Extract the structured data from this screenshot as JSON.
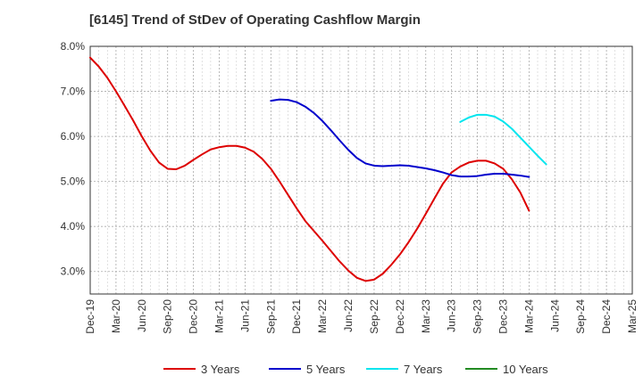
{
  "chart_data": {
    "type": "line",
    "title": "[6145]  Trend of StDev of Operating Cashflow Margin",
    "xlabel": "",
    "ylabel": "",
    "ylim": [
      2.5,
      8.0
    ],
    "y_ticks": [
      3.0,
      4.0,
      5.0,
      6.0,
      7.0,
      8.0
    ],
    "y_tick_labels": [
      "3.0%",
      "4.0%",
      "5.0%",
      "6.0%",
      "7.0%",
      "8.0%"
    ],
    "x_tick_labels": [
      "Dec-19",
      "Mar-20",
      "Jun-20",
      "Sep-20",
      "Dec-20",
      "Mar-21",
      "Jun-21",
      "Sep-21",
      "Dec-21",
      "Mar-22",
      "Jun-22",
      "Sep-22",
      "Dec-22",
      "Mar-23",
      "Jun-23",
      "Sep-23",
      "Dec-23",
      "Mar-24",
      "Jun-24",
      "Sep-24",
      "Dec-24",
      "Mar-25"
    ],
    "grid": true,
    "legend_position": "bottom",
    "series": [
      {
        "name": "3 Years",
        "color": "#dd0000",
        "points": [
          [
            "2019-12",
            7.75
          ],
          [
            "2020-01",
            7.55
          ],
          [
            "2020-02",
            7.3
          ],
          [
            "2020-03",
            7.0
          ],
          [
            "2020-04",
            6.68
          ],
          [
            "2020-05",
            6.35
          ],
          [
            "2020-06",
            6.0
          ],
          [
            "2020-07",
            5.68
          ],
          [
            "2020-08",
            5.42
          ],
          [
            "2020-09",
            5.28
          ],
          [
            "2020-10",
            5.27
          ],
          [
            "2020-11",
            5.35
          ],
          [
            "2020-12",
            5.48
          ],
          [
            "2020-13",
            5.6
          ],
          [
            "2021-02",
            5.71
          ],
          [
            "2021-03",
            5.76
          ],
          [
            "2021-04",
            5.79
          ],
          [
            "2021-05",
            5.79
          ],
          [
            "2021-06",
            5.75
          ],
          [
            "2021-07",
            5.66
          ],
          [
            "2021-08",
            5.5
          ],
          [
            "2021-09",
            5.28
          ],
          [
            "2021-10",
            5.0
          ],
          [
            "2021-11",
            4.7
          ],
          [
            "2021-12",
            4.4
          ],
          [
            "2022-01",
            4.12
          ],
          [
            "2022-02",
            3.9
          ],
          [
            "2022-03",
            3.68
          ],
          [
            "2022-04",
            3.45
          ],
          [
            "2022-05",
            3.22
          ],
          [
            "2022-06",
            3.02
          ],
          [
            "2022-07",
            2.86
          ],
          [
            "2022-08",
            2.79
          ],
          [
            "2022-09",
            2.82
          ],
          [
            "2022-10",
            2.95
          ],
          [
            "2022-11",
            3.15
          ],
          [
            "2022-12",
            3.38
          ],
          [
            "2023-01",
            3.65
          ],
          [
            "2023-02",
            3.95
          ],
          [
            "2023-03",
            4.28
          ],
          [
            "2023-04",
            4.62
          ],
          [
            "2023-05",
            4.95
          ],
          [
            "2023-06",
            5.2
          ],
          [
            "2023-07",
            5.33
          ],
          [
            "2023-08",
            5.42
          ],
          [
            "2023-09",
            5.46
          ],
          [
            "2023-10",
            5.46
          ],
          [
            "2023-11",
            5.4
          ],
          [
            "2023-12",
            5.28
          ],
          [
            "2024-01",
            5.05
          ],
          [
            "2024-02",
            4.75
          ],
          [
            "2024-03",
            4.35
          ]
        ]
      },
      {
        "name": "5 Years",
        "color": "#0000cc",
        "points": [
          [
            "2021-09",
            6.79
          ],
          [
            "2021-10",
            6.82
          ],
          [
            "2021-11",
            6.81
          ],
          [
            "2021-12",
            6.76
          ],
          [
            "2022-01",
            6.66
          ],
          [
            "2022-02",
            6.52
          ],
          [
            "2022-03",
            6.34
          ],
          [
            "2022-04",
            6.13
          ],
          [
            "2022-05",
            5.91
          ],
          [
            "2022-06",
            5.7
          ],
          [
            "2022-07",
            5.52
          ],
          [
            "2022-08",
            5.4
          ],
          [
            "2022-09",
            5.35
          ],
          [
            "2022-10",
            5.34
          ],
          [
            "2022-11",
            5.35
          ],
          [
            "2022-12",
            5.36
          ],
          [
            "2023-01",
            5.35
          ],
          [
            "2023-02",
            5.32
          ],
          [
            "2023-03",
            5.29
          ],
          [
            "2023-04",
            5.25
          ],
          [
            "2023-05",
            5.2
          ],
          [
            "2023-06",
            5.14
          ],
          [
            "2023-07",
            5.11
          ],
          [
            "2023-08",
            5.11
          ],
          [
            "2023-09",
            5.12
          ],
          [
            "2023-10",
            5.15
          ],
          [
            "2023-11",
            5.17
          ],
          [
            "2023-12",
            5.17
          ],
          [
            "2024-01",
            5.15
          ],
          [
            "2024-02",
            5.13
          ],
          [
            "2024-03",
            5.1
          ]
        ]
      },
      {
        "name": "7 Years",
        "color": "#00e5ee",
        "points": [
          [
            "2023-07",
            6.32
          ],
          [
            "2023-08",
            6.42
          ],
          [
            "2023-09",
            6.48
          ],
          [
            "2023-10",
            6.48
          ],
          [
            "2023-11",
            6.44
          ],
          [
            "2023-12",
            6.33
          ],
          [
            "2024-01",
            6.17
          ],
          [
            "2024-02",
            5.97
          ],
          [
            "2024-03",
            5.77
          ],
          [
            "2024-04",
            5.57
          ],
          [
            "2024-05",
            5.38
          ]
        ]
      },
      {
        "name": "10 Years",
        "color": "#228b22",
        "points": []
      }
    ]
  }
}
